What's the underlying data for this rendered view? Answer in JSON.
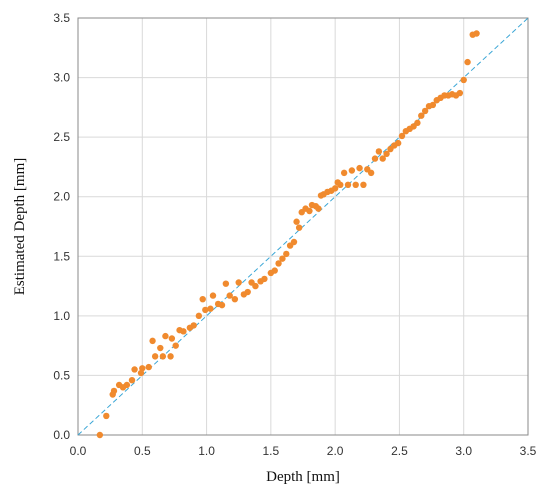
{
  "chart_data": {
    "type": "scatter",
    "xlabel": "Depth [mm]",
    "ylabel": "Estimated Depth [mm]",
    "xlim": [
      0,
      3.5
    ],
    "ylim": [
      0,
      3.5
    ],
    "x_ticks": [
      "0.0",
      "0.5",
      "1.0",
      "1.5",
      "2.0",
      "2.5",
      "3.0",
      "3.5"
    ],
    "y_ticks": [
      "0.0",
      "0.5",
      "1.0",
      "1.5",
      "2.0",
      "2.5",
      "3.0",
      "3.5"
    ],
    "grid": true,
    "legend": "none",
    "colors": {
      "points": "#F08A2E",
      "reference_line": "#3AA6D6",
      "grid": "#D9D9D9"
    },
    "reference_line": {
      "x": [
        0,
        3.5
      ],
      "y": [
        0,
        3.5
      ]
    },
    "series": [
      {
        "points": [
          [
            0.17,
            0.0
          ],
          [
            0.22,
            0.16
          ],
          [
            0.27,
            0.34
          ],
          [
            0.28,
            0.37
          ],
          [
            0.32,
            0.42
          ],
          [
            0.35,
            0.4
          ],
          [
            0.38,
            0.42
          ],
          [
            0.42,
            0.46
          ],
          [
            0.44,
            0.55
          ],
          [
            0.49,
            0.52
          ],
          [
            0.5,
            0.56
          ],
          [
            0.55,
            0.57
          ],
          [
            0.58,
            0.79
          ],
          [
            0.6,
            0.66
          ],
          [
            0.64,
            0.73
          ],
          [
            0.66,
            0.66
          ],
          [
            0.68,
            0.83
          ],
          [
            0.72,
            0.66
          ],
          [
            0.73,
            0.81
          ],
          [
            0.76,
            0.75
          ],
          [
            0.79,
            0.88
          ],
          [
            0.82,
            0.87
          ],
          [
            0.87,
            0.9
          ],
          [
            0.9,
            0.92
          ],
          [
            0.94,
            1.0
          ],
          [
            0.97,
            1.14
          ],
          [
            0.99,
            1.05
          ],
          [
            1.03,
            1.06
          ],
          [
            1.05,
            1.17
          ],
          [
            1.09,
            1.1
          ],
          [
            1.12,
            1.09
          ],
          [
            1.15,
            1.27
          ],
          [
            1.18,
            1.17
          ],
          [
            1.22,
            1.14
          ],
          [
            1.25,
            1.28
          ],
          [
            1.29,
            1.18
          ],
          [
            1.32,
            1.2
          ],
          [
            1.35,
            1.28
          ],
          [
            1.38,
            1.25
          ],
          [
            1.42,
            1.29
          ],
          [
            1.45,
            1.31
          ],
          [
            1.5,
            1.36
          ],
          [
            1.53,
            1.38
          ],
          [
            1.56,
            1.44
          ],
          [
            1.59,
            1.48
          ],
          [
            1.62,
            1.52
          ],
          [
            1.65,
            1.59
          ],
          [
            1.68,
            1.62
          ],
          [
            1.7,
            1.79
          ],
          [
            1.72,
            1.74
          ],
          [
            1.74,
            1.87
          ],
          [
            1.77,
            1.9
          ],
          [
            1.8,
            1.88
          ],
          [
            1.82,
            1.93
          ],
          [
            1.85,
            1.92
          ],
          [
            1.87,
            1.9
          ],
          [
            1.89,
            2.01
          ],
          [
            1.91,
            2.02
          ],
          [
            1.94,
            2.04
          ],
          [
            1.97,
            2.05
          ],
          [
            2.0,
            2.07
          ],
          [
            2.02,
            2.12
          ],
          [
            2.04,
            2.1
          ],
          [
            2.07,
            2.2
          ],
          [
            2.1,
            2.1
          ],
          [
            2.13,
            2.22
          ],
          [
            2.16,
            2.1
          ],
          [
            2.19,
            2.24
          ],
          [
            2.22,
            2.1
          ],
          [
            2.25,
            2.23
          ],
          [
            2.28,
            2.2
          ],
          [
            2.31,
            2.32
          ],
          [
            2.34,
            2.38
          ],
          [
            2.37,
            2.32
          ],
          [
            2.4,
            2.36
          ],
          [
            2.43,
            2.4
          ],
          [
            2.46,
            2.43
          ],
          [
            2.49,
            2.45
          ],
          [
            2.52,
            2.51
          ],
          [
            2.55,
            2.55
          ],
          [
            2.58,
            2.57
          ],
          [
            2.61,
            2.59
          ],
          [
            2.64,
            2.62
          ],
          [
            2.67,
            2.68
          ],
          [
            2.7,
            2.72
          ],
          [
            2.73,
            2.76
          ],
          [
            2.76,
            2.77
          ],
          [
            2.79,
            2.81
          ],
          [
            2.82,
            2.83
          ],
          [
            2.85,
            2.85
          ],
          [
            2.88,
            2.85
          ],
          [
            2.91,
            2.86
          ],
          [
            2.94,
            2.85
          ],
          [
            2.97,
            2.87
          ],
          [
            3.0,
            2.98
          ],
          [
            3.03,
            3.13
          ],
          [
            3.07,
            3.36
          ],
          [
            3.1,
            3.37
          ]
        ]
      }
    ]
  }
}
